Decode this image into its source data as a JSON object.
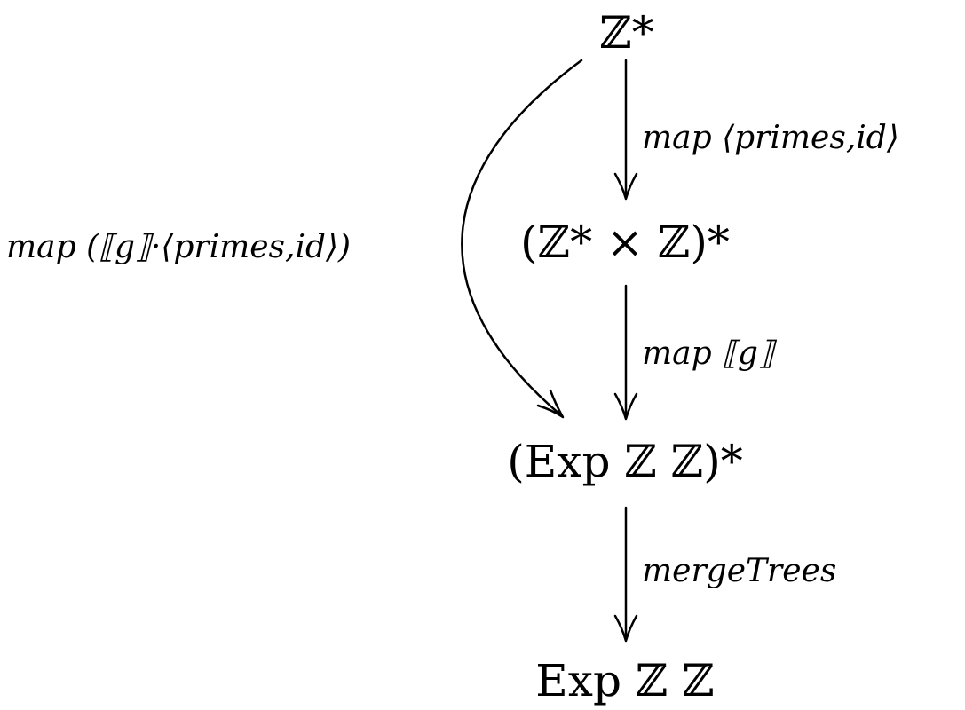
{
  "diagram": {
    "nodes": {
      "z_star": "ℤ*",
      "pair_list": "(ℤ* × ℤ)*",
      "exp_list": "(Exp ℤ ℤ)*",
      "exp": "Exp ℤ ℤ"
    },
    "edges": {
      "map_primes_id": "map ⟨primes,id⟩",
      "map_g": "map ⟦g⟧",
      "merge_trees": "mergeTrees",
      "map_composed": "map (⟦g⟧·⟨primes,id⟩)"
    }
  }
}
